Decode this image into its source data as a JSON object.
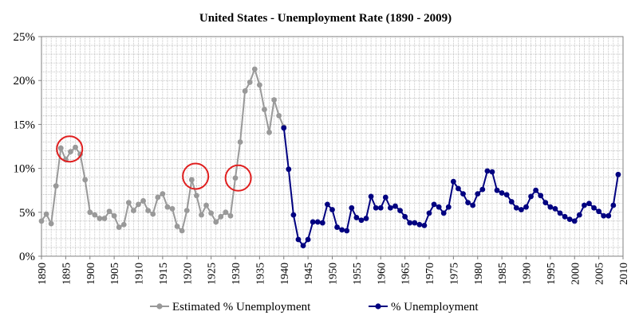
{
  "chart_data": {
    "type": "line",
    "title": "United States - Unemployment Rate (1890 - 2009)",
    "xlabel": "",
    "ylabel": "",
    "xlim": [
      1890,
      2010
    ],
    "ylim": [
      0,
      25
    ],
    "y_ticks": [
      "0%",
      "5%",
      "10%",
      "15%",
      "20%",
      "25%"
    ],
    "x_ticks": [
      "1890",
      "1895",
      "1900",
      "1905",
      "1910",
      "1915",
      "1920",
      "1925",
      "1930",
      "1935",
      "1940",
      "1945",
      "1950",
      "1955",
      "1960",
      "1965",
      "1970",
      "1975",
      "1980",
      "1985",
      "1990",
      "1995",
      "2000",
      "2005",
      "2010"
    ],
    "grid": true,
    "legend_position": "bottom",
    "series": [
      {
        "name": "Estimated % Unemployment",
        "color": "#999999",
        "x": [
          1890,
          1891,
          1892,
          1893,
          1894,
          1895,
          1896,
          1897,
          1898,
          1899,
          1900,
          1901,
          1902,
          1903,
          1904,
          1905,
          1906,
          1907,
          1908,
          1909,
          1910,
          1911,
          1912,
          1913,
          1914,
          1915,
          1916,
          1917,
          1918,
          1919,
          1920,
          1921,
          1922,
          1923,
          1924,
          1925,
          1926,
          1927,
          1928,
          1929,
          1930,
          1931,
          1932,
          1933,
          1934,
          1935,
          1936,
          1937,
          1938,
          1939,
          1940
        ],
        "values": [
          4.0,
          4.8,
          3.7,
          8.0,
          12.3,
          11.0,
          11.9,
          12.4,
          11.6,
          8.7,
          5.0,
          4.7,
          4.3,
          4.3,
          5.1,
          4.6,
          3.3,
          3.6,
          6.1,
          5.2,
          5.9,
          6.3,
          5.2,
          4.8,
          6.7,
          7.1,
          5.6,
          5.4,
          3.4,
          2.9,
          5.2,
          8.7,
          6.9,
          4.7,
          5.8,
          4.9,
          3.9,
          4.5,
          5.0,
          4.6,
          8.9,
          13.0,
          18.8,
          19.8,
          21.3,
          19.5,
          16.7,
          14.1,
          17.8,
          16.0,
          14.7
        ]
      },
      {
        "name": "% Unemployment",
        "color": "#000080",
        "x": [
          1940,
          1941,
          1942,
          1943,
          1944,
          1945,
          1946,
          1947,
          1948,
          1949,
          1950,
          1951,
          1952,
          1953,
          1954,
          1955,
          1956,
          1957,
          1958,
          1959,
          1960,
          1961,
          1962,
          1963,
          1964,
          1965,
          1966,
          1967,
          1968,
          1969,
          1970,
          1971,
          1972,
          1973,
          1974,
          1975,
          1976,
          1977,
          1978,
          1979,
          1980,
          1981,
          1982,
          1983,
          1984,
          1985,
          1986,
          1987,
          1988,
          1989,
          1990,
          1991,
          1992,
          1993,
          1994,
          1995,
          1996,
          1997,
          1998,
          1999,
          2000,
          2001,
          2002,
          2003,
          2004,
          2005,
          2006,
          2007,
          2008,
          2009
        ],
        "values": [
          14.6,
          9.9,
          4.7,
          1.9,
          1.2,
          1.9,
          3.9,
          3.9,
          3.8,
          5.9,
          5.3,
          3.3,
          3.0,
          2.9,
          5.5,
          4.4,
          4.1,
          4.3,
          6.8,
          5.5,
          5.5,
          6.7,
          5.5,
          5.7,
          5.2,
          4.5,
          3.8,
          3.8,
          3.6,
          3.5,
          4.9,
          5.9,
          5.6,
          4.9,
          5.6,
          8.5,
          7.7,
          7.1,
          6.1,
          5.8,
          7.1,
          7.6,
          9.7,
          9.6,
          7.5,
          7.2,
          7.0,
          6.2,
          5.5,
          5.3,
          5.6,
          6.8,
          7.5,
          6.9,
          6.1,
          5.6,
          5.4,
          4.9,
          4.5,
          4.2,
          4.0,
          4.7,
          5.8,
          6.0,
          5.5,
          5.1,
          4.6,
          4.6,
          5.8,
          9.3
        ]
      }
    ],
    "annotations": [
      {
        "type": "circle",
        "color": "#e02020",
        "x": 1895.8,
        "y": 12.2
      },
      {
        "type": "circle",
        "color": "#e02020",
        "x": 1921.8,
        "y": 9.1
      },
      {
        "type": "circle",
        "color": "#e02020",
        "x": 1930.6,
        "y": 8.9
      }
    ]
  }
}
